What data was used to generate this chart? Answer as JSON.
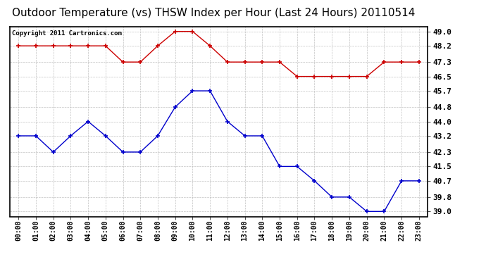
{
  "title": "Outdoor Temperature (vs) THSW Index per Hour (Last 24 Hours) 20110514",
  "copyright": "Copyright 2011 Cartronics.com",
  "hours": [
    "00:00",
    "01:00",
    "02:00",
    "03:00",
    "04:00",
    "05:00",
    "06:00",
    "07:00",
    "08:00",
    "09:00",
    "10:00",
    "11:00",
    "12:00",
    "13:00",
    "14:00",
    "15:00",
    "16:00",
    "17:00",
    "18:00",
    "19:00",
    "20:00",
    "21:00",
    "22:00",
    "23:00"
  ],
  "red_data": [
    48.2,
    48.2,
    48.2,
    48.2,
    48.2,
    48.2,
    47.3,
    47.3,
    48.2,
    49.0,
    49.0,
    48.2,
    47.3,
    47.3,
    47.3,
    47.3,
    46.5,
    46.5,
    46.5,
    46.5,
    46.5,
    47.3,
    47.3,
    47.3
  ],
  "blue_data": [
    43.2,
    43.2,
    42.3,
    43.2,
    44.0,
    43.2,
    42.3,
    42.3,
    43.2,
    44.8,
    45.7,
    45.7,
    44.0,
    43.2,
    43.2,
    41.5,
    41.5,
    40.7,
    39.8,
    39.8,
    39.0,
    39.0,
    40.7,
    40.7
  ],
  "ylim": [
    38.72,
    49.28
  ],
  "yticks": [
    39.0,
    39.8,
    40.7,
    41.5,
    42.3,
    43.2,
    44.0,
    44.8,
    45.7,
    46.5,
    47.3,
    48.2,
    49.0
  ],
  "red_color": "#cc0000",
  "blue_color": "#0000cc",
  "bg_color": "#ffffff",
  "grid_color": "#bbbbbb",
  "title_fontsize": 11,
  "copyright_fontsize": 6.5,
  "tick_fontsize": 8,
  "xtick_fontsize": 7
}
